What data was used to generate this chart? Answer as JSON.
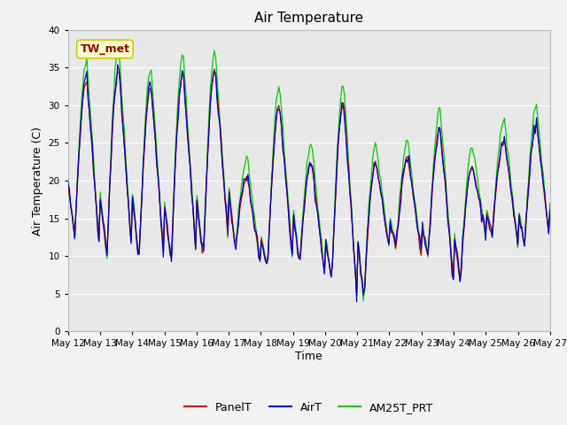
{
  "title": "Air Temperature",
  "xlabel": "Time",
  "ylabel": "Air Temperature (C)",
  "ylim": [
    0,
    40
  ],
  "yticks": [
    0,
    5,
    10,
    15,
    20,
    25,
    30,
    35,
    40
  ],
  "start_day": 12,
  "end_day": 27,
  "annotation_text": "TW_met",
  "annotation_bg": "#ffffcc",
  "annotation_border": "#cccc00",
  "annotation_text_color": "#990000",
  "line_colors": {
    "PanelT": "#cc0000",
    "AirT": "#0000cc",
    "AM25T_PRT": "#00cc00"
  },
  "legend_labels": [
    "PanelT",
    "AirT",
    "AM25T_PRT"
  ],
  "bg_color": "#e8e8e8",
  "grid_color": "#ffffff",
  "diurnal_peaks": [
    33.5,
    35.0,
    32.5,
    34.5,
    35.0,
    20.5,
    30.0,
    22.5,
    30.5,
    22.5,
    23.0,
    27.0,
    22.0,
    25.5,
    27.5
  ],
  "diurnal_mins": [
    12.5,
    10.0,
    9.5,
    9.0,
    9.5,
    11.0,
    8.5,
    9.0,
    7.0,
    4.0,
    11.0,
    10.0,
    6.5,
    13.0,
    11.5
  ]
}
